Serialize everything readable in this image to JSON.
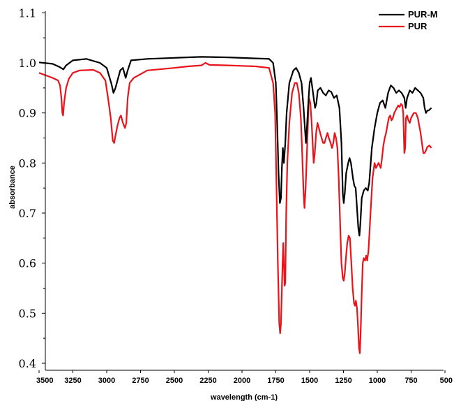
{
  "chart_data": {
    "type": "line",
    "xlabel": "wavelength (cm-1)",
    "ylabel": "absorbance",
    "xlim": [
      3500,
      500
    ],
    "ylim": [
      0.4,
      1.15
    ],
    "xticks": [
      "3500",
      "3250",
      "3000",
      "2750",
      "2500",
      "2250",
      "2000",
      "1750",
      "1500",
      "1250",
      "1000",
      "750",
      "500"
    ],
    "yticks": [
      "0.4",
      "0.5",
      "0.6",
      "0.7",
      "0.8",
      "0.9",
      "1.0",
      "1.1"
    ],
    "legend_position": "top-right",
    "grid": false,
    "series": [
      {
        "name": "PUR-M",
        "color": "#000000",
        "points": [
          [
            3500,
            1.001
          ],
          [
            3400,
            0.998
          ],
          [
            3350,
            0.992
          ],
          [
            3320,
            0.987
          ],
          [
            3300,
            0.995
          ],
          [
            3250,
            1.005
          ],
          [
            3150,
            1.008
          ],
          [
            3050,
            1.0
          ],
          [
            3000,
            0.99
          ],
          [
            2965,
            0.958
          ],
          [
            2950,
            0.94
          ],
          [
            2935,
            0.95
          ],
          [
            2920,
            0.965
          ],
          [
            2900,
            0.985
          ],
          [
            2880,
            0.99
          ],
          [
            2860,
            0.97
          ],
          [
            2845,
            0.985
          ],
          [
            2820,
            1.005
          ],
          [
            2700,
            1.008
          ],
          [
            2500,
            1.01
          ],
          [
            2300,
            1.012
          ],
          [
            2100,
            1.011
          ],
          [
            1900,
            1.009
          ],
          [
            1800,
            1.008
          ],
          [
            1770,
            1.0
          ],
          [
            1750,
            0.96
          ],
          [
            1740,
            0.88
          ],
          [
            1730,
            0.78
          ],
          [
            1720,
            0.72
          ],
          [
            1712,
            0.73
          ],
          [
            1705,
            0.79
          ],
          [
            1698,
            0.83
          ],
          [
            1690,
            0.8
          ],
          [
            1680,
            0.84
          ],
          [
            1670,
            0.9
          ],
          [
            1650,
            0.96
          ],
          [
            1620,
            0.985
          ],
          [
            1600,
            0.99
          ],
          [
            1580,
            0.98
          ],
          [
            1560,
            0.96
          ],
          [
            1545,
            0.91
          ],
          [
            1535,
            0.87
          ],
          [
            1528,
            0.84
          ],
          [
            1520,
            0.87
          ],
          [
            1510,
            0.92
          ],
          [
            1500,
            0.96
          ],
          [
            1490,
            0.97
          ],
          [
            1480,
            0.95
          ],
          [
            1470,
            0.93
          ],
          [
            1460,
            0.91
          ],
          [
            1450,
            0.92
          ],
          [
            1440,
            0.945
          ],
          [
            1420,
            0.95
          ],
          [
            1400,
            0.94
          ],
          [
            1380,
            0.935
          ],
          [
            1360,
            0.945
          ],
          [
            1340,
            0.942
          ],
          [
            1320,
            0.93
          ],
          [
            1300,
            0.935
          ],
          [
            1280,
            0.91
          ],
          [
            1265,
            0.84
          ],
          [
            1255,
            0.74
          ],
          [
            1248,
            0.72
          ],
          [
            1240,
            0.74
          ],
          [
            1230,
            0.78
          ],
          [
            1215,
            0.8
          ],
          [
            1205,
            0.81
          ],
          [
            1195,
            0.8
          ],
          [
            1180,
            0.77
          ],
          [
            1170,
            0.755
          ],
          [
            1160,
            0.75
          ],
          [
            1150,
            0.71
          ],
          [
            1140,
            0.67
          ],
          [
            1132,
            0.655
          ],
          [
            1125,
            0.68
          ],
          [
            1115,
            0.73
          ],
          [
            1100,
            0.745
          ],
          [
            1085,
            0.75
          ],
          [
            1070,
            0.745
          ],
          [
            1060,
            0.76
          ],
          [
            1040,
            0.83
          ],
          [
            1020,
            0.87
          ],
          [
            1000,
            0.9
          ],
          [
            980,
            0.92
          ],
          [
            960,
            0.925
          ],
          [
            940,
            0.91
          ],
          [
            920,
            0.94
          ],
          [
            900,
            0.955
          ],
          [
            880,
            0.95
          ],
          [
            860,
            0.94
          ],
          [
            840,
            0.945
          ],
          [
            820,
            0.94
          ],
          [
            800,
            0.93
          ],
          [
            790,
            0.91
          ],
          [
            780,
            0.93
          ],
          [
            760,
            0.945
          ],
          [
            740,
            0.94
          ],
          [
            720,
            0.95
          ],
          [
            700,
            0.945
          ],
          [
            680,
            0.94
          ],
          [
            660,
            0.93
          ],
          [
            650,
            0.91
          ],
          [
            640,
            0.9
          ],
          [
            630,
            0.905
          ],
          [
            620,
            0.905
          ],
          [
            600,
            0.91
          ]
        ]
      },
      {
        "name": "PUR",
        "color": "#e8131b",
        "points": [
          [
            3500,
            0.98
          ],
          [
            3450,
            0.975
          ],
          [
            3400,
            0.97
          ],
          [
            3360,
            0.965
          ],
          [
            3345,
            0.955
          ],
          [
            3335,
            0.93
          ],
          [
            3328,
            0.9
          ],
          [
            3322,
            0.895
          ],
          [
            3315,
            0.92
          ],
          [
            3300,
            0.95
          ],
          [
            3280,
            0.968
          ],
          [
            3250,
            0.98
          ],
          [
            3200,
            0.985
          ],
          [
            3100,
            0.986
          ],
          [
            3050,
            0.98
          ],
          [
            3010,
            0.965
          ],
          [
            2990,
            0.93
          ],
          [
            2970,
            0.89
          ],
          [
            2955,
            0.845
          ],
          [
            2945,
            0.84
          ],
          [
            2935,
            0.855
          ],
          [
            2920,
            0.875
          ],
          [
            2905,
            0.89
          ],
          [
            2895,
            0.895
          ],
          [
            2880,
            0.88
          ],
          [
            2865,
            0.87
          ],
          [
            2855,
            0.88
          ],
          [
            2845,
            0.93
          ],
          [
            2830,
            0.96
          ],
          [
            2800,
            0.97
          ],
          [
            2700,
            0.985
          ],
          [
            2500,
            0.99
          ],
          [
            2400,
            0.993
          ],
          [
            2300,
            0.995
          ],
          [
            2270,
            1.0
          ],
          [
            2240,
            0.996
          ],
          [
            2100,
            0.995
          ],
          [
            2000,
            0.994
          ],
          [
            1900,
            0.993
          ],
          [
            1800,
            0.99
          ],
          [
            1770,
            0.96
          ],
          [
            1755,
            0.9
          ],
          [
            1745,
            0.75
          ],
          [
            1735,
            0.6
          ],
          [
            1725,
            0.48
          ],
          [
            1718,
            0.46
          ],
          [
            1712,
            0.48
          ],
          [
            1705,
            0.55
          ],
          [
            1700,
            0.6
          ],
          [
            1695,
            0.64
          ],
          [
            1690,
            0.6
          ],
          [
            1685,
            0.555
          ],
          [
            1680,
            0.56
          ],
          [
            1673,
            0.7
          ],
          [
            1665,
            0.8
          ],
          [
            1650,
            0.88
          ],
          [
            1630,
            0.94
          ],
          [
            1610,
            0.96
          ],
          [
            1595,
            0.96
          ],
          [
            1580,
            0.94
          ],
          [
            1565,
            0.89
          ],
          [
            1555,
            0.82
          ],
          [
            1545,
            0.74
          ],
          [
            1538,
            0.71
          ],
          [
            1530,
            0.75
          ],
          [
            1520,
            0.82
          ],
          [
            1510,
            0.9
          ],
          [
            1505,
            0.93
          ],
          [
            1495,
            0.92
          ],
          [
            1485,
            0.88
          ],
          [
            1478,
            0.84
          ],
          [
            1470,
            0.8
          ],
          [
            1462,
            0.82
          ],
          [
            1452,
            0.86
          ],
          [
            1442,
            0.88
          ],
          [
            1432,
            0.87
          ],
          [
            1422,
            0.86
          ],
          [
            1412,
            0.85
          ],
          [
            1400,
            0.84
          ],
          [
            1390,
            0.84
          ],
          [
            1380,
            0.85
          ],
          [
            1368,
            0.86
          ],
          [
            1358,
            0.85
          ],
          [
            1345,
            0.84
          ],
          [
            1335,
            0.83
          ],
          [
            1325,
            0.84
          ],
          [
            1315,
            0.86
          ],
          [
            1305,
            0.85
          ],
          [
            1295,
            0.83
          ],
          [
            1285,
            0.77
          ],
          [
            1275,
            0.68
          ],
          [
            1265,
            0.6
          ],
          [
            1255,
            0.57
          ],
          [
            1248,
            0.565
          ],
          [
            1240,
            0.58
          ],
          [
            1232,
            0.61
          ],
          [
            1222,
            0.64
          ],
          [
            1212,
            0.655
          ],
          [
            1202,
            0.65
          ],
          [
            1192,
            0.6
          ],
          [
            1182,
            0.55
          ],
          [
            1172,
            0.52
          ],
          [
            1165,
            0.515
          ],
          [
            1158,
            0.525
          ],
          [
            1150,
            0.51
          ],
          [
            1142,
            0.47
          ],
          [
            1135,
            0.43
          ],
          [
            1129,
            0.42
          ],
          [
            1123,
            0.46
          ],
          [
            1115,
            0.54
          ],
          [
            1107,
            0.6
          ],
          [
            1100,
            0.61
          ],
          [
            1090,
            0.605
          ],
          [
            1082,
            0.615
          ],
          [
            1075,
            0.605
          ],
          [
            1065,
            0.625
          ],
          [
            1050,
            0.7
          ],
          [
            1035,
            0.77
          ],
          [
            1020,
            0.8
          ],
          [
            1010,
            0.79
          ],
          [
            1000,
            0.795
          ],
          [
            990,
            0.8
          ],
          [
            975,
            0.79
          ],
          [
            965,
            0.81
          ],
          [
            955,
            0.835
          ],
          [
            945,
            0.85
          ],
          [
            935,
            0.86
          ],
          [
            925,
            0.875
          ],
          [
            915,
            0.89
          ],
          [
            905,
            0.895
          ],
          [
            895,
            0.885
          ],
          [
            885,
            0.89
          ],
          [
            875,
            0.9
          ],
          [
            865,
            0.905
          ],
          [
            855,
            0.91
          ],
          [
            845,
            0.915
          ],
          [
            835,
            0.912
          ],
          [
            825,
            0.918
          ],
          [
            815,
            0.915
          ],
          [
            808,
            0.9
          ],
          [
            800,
            0.82
          ],
          [
            794,
            0.83
          ],
          [
            788,
            0.89
          ],
          [
            780,
            0.895
          ],
          [
            770,
            0.885
          ],
          [
            760,
            0.88
          ],
          [
            750,
            0.89
          ],
          [
            740,
            0.895
          ],
          [
            730,
            0.9
          ],
          [
            715,
            0.9
          ],
          [
            700,
            0.89
          ],
          [
            690,
            0.875
          ],
          [
            680,
            0.86
          ],
          [
            670,
            0.84
          ],
          [
            660,
            0.82
          ],
          [
            650,
            0.82
          ],
          [
            640,
            0.825
          ],
          [
            630,
            0.832
          ],
          [
            615,
            0.835
          ],
          [
            600,
            0.83
          ]
        ]
      }
    ]
  }
}
